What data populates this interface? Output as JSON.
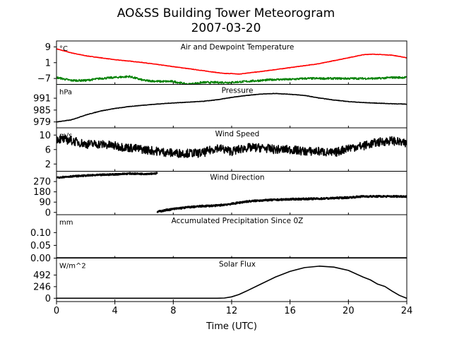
{
  "chart_data": {
    "type": "line",
    "title": "AO&SS Building Tower Meteorogram",
    "subtitle": "2007-03-20",
    "xlabel": "Time (UTC)",
    "xlim": [
      0,
      24
    ],
    "xticks": [
      0,
      4,
      8,
      12,
      16,
      20,
      24
    ],
    "panels": [
      {
        "key": "temp",
        "title": "Air and Dewpoint Temperature",
        "unit": "°C",
        "ylim": [
          -10,
          12
        ],
        "yticks": [
          9,
          1,
          -7
        ],
        "series": [
          {
            "color": "#ff0000",
            "width": 1.6,
            "noise": 0.1,
            "x": [
              0,
              1,
              2,
              3,
              4,
              5,
              6,
              7,
              8,
              9,
              10,
              11,
              11.5,
              12,
              12.5,
              13,
              14,
              15,
              16,
              17,
              18,
              19,
              20,
              21,
              21.5,
              22,
              23,
              24
            ],
            "y": [
              8.0,
              6.0,
              4.5,
              3.5,
              2.5,
              1.8,
              1.0,
              0.0,
              -1.0,
              -2.0,
              -3.0,
              -4.0,
              -4.5,
              -4.5,
              -4.8,
              -4.3,
              -3.5,
              -2.5,
              -1.5,
              -0.5,
              0.5,
              2.0,
              3.5,
              5.0,
              5.3,
              5.2,
              4.8,
              3.5
            ]
          },
          {
            "color": "#008000",
            "width": 1.6,
            "noise": 0.5,
            "x": [
              0,
              1,
              2,
              3,
              4,
              5,
              6,
              7,
              8,
              9,
              10,
              11,
              12,
              13,
              14,
              15,
              16,
              17,
              18,
              19,
              20,
              21,
              22,
              23,
              24
            ],
            "y": [
              -6.5,
              -8.0,
              -8.0,
              -7.0,
              -6.5,
              -6.0,
              -8.0,
              -8.5,
              -8.5,
              -10.0,
              -9.0,
              -9.0,
              -9.0,
              -8.5,
              -8.0,
              -7.5,
              -7.5,
              -7.0,
              -7.0,
              -7.0,
              -7.0,
              -7.0,
              -7.0,
              -6.5,
              -6.5
            ]
          }
        ]
      },
      {
        "key": "pressure",
        "title": "Pressure",
        "unit": "hPa",
        "ylim": [
          976,
          998
        ],
        "yticks": [
          991,
          985,
          979
        ],
        "series": [
          {
            "color": "#000000",
            "width": 1.6,
            "noise": 0.1,
            "x": [
              0,
              1,
              2,
              3,
              4,
              5,
              6,
              7,
              8,
              9,
              10,
              11,
              12,
              13,
              14,
              15,
              16,
              17,
              18,
              19,
              20,
              21,
              22,
              23,
              24
            ],
            "y": [
              979.0,
              980.0,
              982.5,
              984.5,
              985.8,
              986.8,
              987.5,
              988.1,
              988.6,
              989.0,
              989.4,
              990.2,
              991.4,
              992.4,
              993.1,
              993.4,
              993.0,
              992.4,
              991.1,
              990.1,
              989.3,
              988.8,
              988.5,
              988.2,
              988.0
            ]
          }
        ]
      },
      {
        "key": "windspeed",
        "title": "Wind Speed",
        "unit": "m/s",
        "ylim": [
          0,
          12
        ],
        "yticks": [
          10,
          6,
          2
        ],
        "series": [
          {
            "color": "#000000",
            "width": 1.6,
            "noise": 1.2,
            "x": [
              0,
              1,
              2,
              3,
              4,
              5,
              6,
              7,
              8,
              9,
              10,
              11,
              12,
              13,
              14,
              15,
              16,
              17,
              18,
              19,
              20,
              21,
              22,
              23,
              24
            ],
            "y": [
              9.0,
              8.5,
              7.5,
              7.5,
              7.0,
              6.5,
              6.0,
              5.5,
              5.0,
              5.0,
              5.0,
              6.5,
              5.5,
              6.5,
              6.5,
              6.0,
              6.0,
              5.5,
              5.5,
              5.0,
              6.5,
              7.0,
              8.0,
              8.5,
              7.5
            ]
          }
        ]
      },
      {
        "key": "winddir",
        "title": "Wind Direction",
        "unit": "",
        "ylim": [
          -20,
          360
        ],
        "yticks": [
          270,
          180,
          90,
          0
        ],
        "series": [
          {
            "color": "#000000",
            "width": 2.6,
            "noise": 5,
            "x": [
              0,
              1,
              2,
              3,
              4,
              5,
              6,
              6.9
            ],
            "y": [
              305,
              315,
              322,
              328,
              333,
              340,
              337,
              342
            ]
          },
          {
            "color": "#000000",
            "width": 2.6,
            "noise": 6,
            "x": [
              6.9,
              7.5,
              8,
              9,
              10,
              11,
              12,
              13,
              14,
              15,
              16,
              17,
              18,
              19,
              20,
              21,
              22,
              23,
              24
            ],
            "y": [
              5,
              20,
              30,
              45,
              55,
              60,
              75,
              95,
              105,
              110,
              115,
              118,
              120,
              125,
              130,
              140,
              140,
              140,
              140
            ]
          }
        ]
      },
      {
        "key": "precip",
        "title": "Accumulated Precipitation Since 0Z",
        "unit": "mm",
        "ylim": [
          0,
          0.17
        ],
        "yticks": [
          0.1,
          0.05,
          0.0
        ],
        "tickFormat": 2,
        "series": [
          {
            "color": "#000000",
            "width": 2.6,
            "noise": 0,
            "x": [
              0,
              24
            ],
            "y": [
              0,
              0
            ]
          }
        ]
      },
      {
        "key": "solar",
        "title": "Solar Flux",
        "unit": "W/m^2",
        "ylim": [
          -70,
          850
        ],
        "yticks": [
          492,
          246,
          0
        ],
        "series": [
          {
            "color": "#000000",
            "width": 1.6,
            "noise": 0,
            "x": [
              0,
              11,
              11.5,
              12,
              12.5,
              13,
              14,
              15,
              16,
              17,
              18,
              19,
              20,
              21,
              21.5,
              22,
              22.5,
              23,
              23.5,
              24
            ],
            "y": [
              0,
              0,
              5,
              30,
              80,
              150,
              300,
              450,
              570,
              650,
              680,
              660,
              590,
              450,
              390,
              300,
              250,
              150,
              60,
              0
            ]
          }
        ]
      }
    ]
  }
}
